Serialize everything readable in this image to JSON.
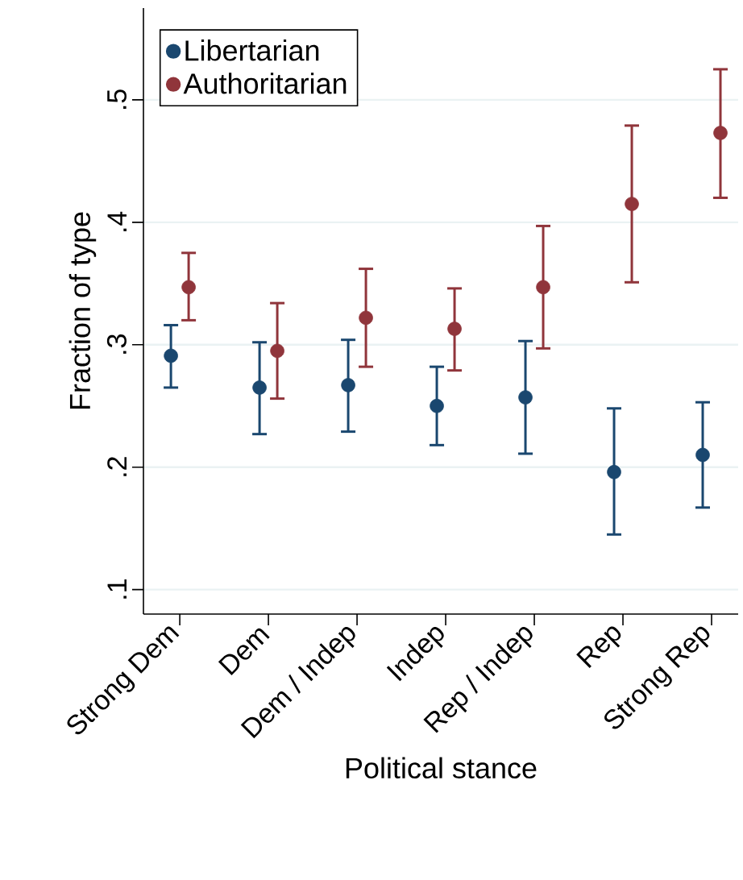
{
  "chart_data": {
    "type": "scatter",
    "xlabel": "Political stance",
    "ylabel": "Fraction of type",
    "categories": [
      "Strong Dem",
      "Dem",
      "Dem / Indep",
      "Indep",
      "Rep / Indep",
      "Rep",
      "Strong Rep"
    ],
    "series": [
      {
        "name": "Libertarian",
        "color": "#1a476f",
        "values": [
          0.291,
          0.265,
          0.267,
          0.25,
          0.257,
          0.196,
          0.21
        ],
        "errors": [
          [
            0.265,
            0.316
          ],
          [
            0.227,
            0.302
          ],
          [
            0.229,
            0.304
          ],
          [
            0.218,
            0.282
          ],
          [
            0.211,
            0.303
          ],
          [
            0.145,
            0.248
          ],
          [
            0.167,
            0.253
          ]
        ]
      },
      {
        "name": "Authoritarian",
        "color": "#90353b",
        "values": [
          0.347,
          0.295,
          0.322,
          0.313,
          0.347,
          0.415,
          0.473
        ],
        "errors": [
          [
            0.32,
            0.375
          ],
          [
            0.256,
            0.334
          ],
          [
            0.282,
            0.362
          ],
          [
            0.279,
            0.346
          ],
          [
            0.297,
            0.397
          ],
          [
            0.351,
            0.479
          ],
          [
            0.42,
            0.525
          ]
        ]
      }
    ],
    "ylim": [
      0.08,
      0.575
    ],
    "yticks": [
      {
        "value": 0.1,
        "label": ".1"
      },
      {
        "value": 0.2,
        "label": ".2"
      },
      {
        "value": 0.3,
        "label": ".3"
      },
      {
        "value": 0.4,
        "label": ".4"
      },
      {
        "value": 0.5,
        "label": ".5"
      }
    ],
    "grid": "y",
    "legend": "top left",
    "marker": "circle"
  }
}
